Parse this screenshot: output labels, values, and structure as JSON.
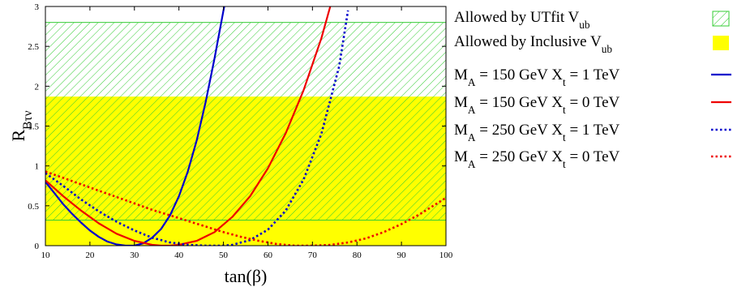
{
  "chart_data": {
    "type": "line",
    "xlabel": "tan(β)",
    "ylabel": {
      "main": "R",
      "sub": "Bτν"
    },
    "xlim": [
      10,
      100
    ],
    "ylim": [
      0,
      3
    ],
    "xticks": [
      "10",
      "20",
      "30",
      "40",
      "50",
      "60",
      "70",
      "80",
      "90",
      "100"
    ],
    "yticks": [
      "0",
      "0.5",
      "1",
      "1.5",
      "2",
      "2.5",
      "3"
    ],
    "grid": false,
    "legend_position": "outside-right",
    "bands": [
      {
        "name": "Allowed by UTfit V",
        "name_sub": "ub",
        "style": "hatched",
        "color": "#33cc33",
        "y_range": [
          0.32,
          2.8
        ]
      },
      {
        "name": "Allowed by Inclusive V",
        "name_sub": "ub",
        "style": "filled",
        "color": "#ffff00",
        "y_range": [
          0,
          1.87
        ]
      }
    ],
    "series": [
      {
        "label_parts": [
          "M",
          "A",
          " = 150 GeV X",
          "t",
          " = 1 TeV"
        ],
        "color": "#0000cc",
        "dash": "solid",
        "x": [
          10,
          12,
          14,
          16,
          18,
          20,
          22,
          24,
          26,
          28,
          30,
          32,
          34,
          36,
          38,
          40,
          42,
          44,
          46,
          48,
          50,
          52
        ],
        "y": [
          0.8,
          0.66,
          0.52,
          0.4,
          0.29,
          0.19,
          0.11,
          0.05,
          0.015,
          0.0,
          0.0,
          0.03,
          0.1,
          0.21,
          0.38,
          0.62,
          0.93,
          1.32,
          1.8,
          2.35,
          2.95,
          3.5
        ]
      },
      {
        "label_parts": [
          "M",
          "A",
          " = 150 GeV X",
          "t",
          " = 0 TeV"
        ],
        "color": "#ee0000",
        "dash": "solid",
        "x": [
          10,
          14,
          18,
          22,
          26,
          30,
          34,
          36,
          38,
          40,
          44,
          48,
          52,
          56,
          60,
          64,
          68,
          72,
          74
        ],
        "y": [
          0.82,
          0.62,
          0.44,
          0.28,
          0.15,
          0.06,
          0.01,
          0.0,
          0.0,
          0.01,
          0.06,
          0.17,
          0.36,
          0.62,
          0.97,
          1.41,
          1.95,
          2.6,
          3.0
        ]
      },
      {
        "label_parts": [
          "M",
          "A",
          " = 250 GeV X",
          "t",
          " = 1 TeV"
        ],
        "color": "#0000cc",
        "dash": "dotted",
        "x": [
          10,
          14,
          18,
          22,
          26,
          30,
          34,
          38,
          42,
          46,
          50,
          52,
          56,
          60,
          64,
          68,
          72,
          76,
          78
        ],
        "y": [
          0.91,
          0.75,
          0.58,
          0.43,
          0.3,
          0.19,
          0.1,
          0.04,
          0.01,
          0.0,
          0.0,
          0.01,
          0.07,
          0.2,
          0.44,
          0.83,
          1.4,
          2.25,
          2.95
        ]
      },
      {
        "label_parts": [
          "M",
          "A",
          " = 250 GeV X",
          "t",
          " = 0 TeV"
        ],
        "color": "#ee0000",
        "dash": "dotted",
        "x": [
          10,
          14,
          18,
          22,
          26,
          30,
          34,
          38,
          42,
          46,
          50,
          54,
          58,
          62,
          66,
          68,
          70,
          74,
          78,
          82,
          86,
          90,
          94,
          98,
          100
        ],
        "y": [
          0.93,
          0.85,
          0.77,
          0.69,
          0.61,
          0.53,
          0.45,
          0.38,
          0.31,
          0.24,
          0.17,
          0.11,
          0.06,
          0.02,
          0.0,
          0.0,
          0.0,
          0.01,
          0.04,
          0.09,
          0.17,
          0.27,
          0.39,
          0.53,
          0.6
        ]
      }
    ]
  }
}
